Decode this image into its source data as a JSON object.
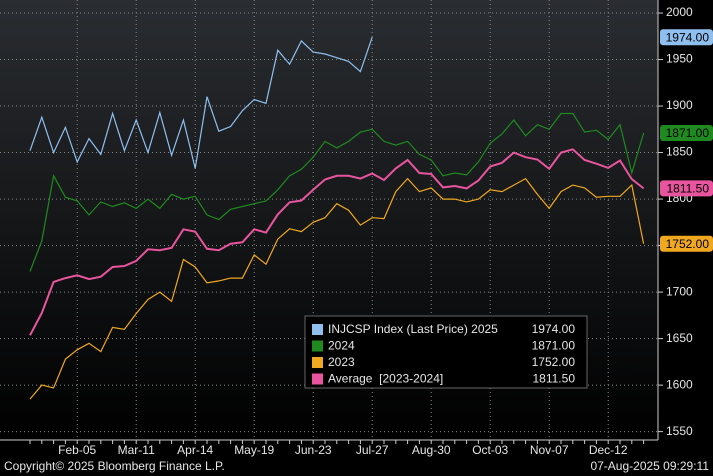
{
  "chart_data": {
    "type": "line",
    "categories": [
      null,
      null,
      null,
      null,
      "Feb-05",
      null,
      null,
      null,
      null,
      "Mar-11",
      null,
      null,
      null,
      null,
      "Apr-14",
      null,
      null,
      null,
      null,
      "May-19",
      null,
      null,
      null,
      null,
      "Jun-23",
      null,
      null,
      null,
      null,
      "Jul-27",
      null,
      null,
      null,
      null,
      "Aug-30",
      null,
      null,
      null,
      null,
      "Oct-03",
      null,
      null,
      null,
      null,
      "Nov-07",
      null,
      null,
      null,
      null,
      "Dec-12",
      null,
      null,
      null
    ],
    "series": [
      {
        "name": "INJCSP Index (Last Price) 2025",
        "color": "#8fbfef",
        "values": [
          1852,
          1888,
          1850,
          1877,
          1840,
          1865,
          1848,
          1892,
          1852,
          1885,
          1850,
          1893,
          1847,
          1885,
          1833,
          1910,
          1873,
          1878,
          1895,
          1907,
          1903,
          1960,
          1945,
          1970,
          1958,
          1956,
          1952,
          1948,
          1937,
          1974,
          null,
          null,
          null,
          null,
          null,
          null,
          null,
          null,
          null,
          null,
          null,
          null,
          null,
          null,
          null,
          null,
          null,
          null,
          null,
          null,
          null,
          null,
          null
        ],
        "value_labels": [
          null,
          null,
          null,
          null,
          null,
          null,
          null,
          null,
          null,
          null,
          null,
          null,
          null,
          null,
          null,
          null,
          null,
          null,
          null,
          null,
          null,
          null,
          null,
          null,
          null,
          null,
          null,
          null,
          null,
          "1974.00",
          null,
          null,
          null,
          null,
          null,
          null,
          null,
          null,
          null,
          null,
          null,
          null,
          null,
          null,
          null,
          null,
          null,
          null,
          null,
          null,
          null,
          null,
          null
        ]
      },
      {
        "name": "2024",
        "color": "#1f8a1f",
        "values": [
          1722,
          1755,
          1825,
          1802,
          1798,
          1783,
          1797,
          1792,
          1796,
          1790,
          1800,
          1790,
          1805,
          1800,
          1803,
          1783,
          1778,
          1789,
          1792,
          1795,
          1798,
          1810,
          1825,
          1832,
          1845,
          1862,
          1855,
          1862,
          1872,
          1875,
          1862,
          1858,
          1862,
          1848,
          1842,
          1825,
          1828,
          1826,
          1840,
          1860,
          1870,
          1885,
          1868,
          1880,
          1875,
          1892,
          1892,
          1872,
          1874,
          1864,
          1880,
          1828,
          1871
        ],
        "value_labels": [
          null,
          null,
          null,
          null,
          null,
          null,
          null,
          null,
          null,
          null,
          null,
          null,
          null,
          null,
          null,
          null,
          null,
          null,
          null,
          null,
          null,
          null,
          null,
          null,
          null,
          null,
          null,
          null,
          null,
          null,
          null,
          null,
          null,
          null,
          null,
          null,
          null,
          null,
          null,
          null,
          null,
          null,
          null,
          null,
          null,
          null,
          null,
          null,
          null,
          null,
          null,
          null,
          "1871.00"
        ]
      },
      {
        "name": "2023",
        "color": "#f0a820",
        "values": [
          1585,
          1600,
          1597,
          1628,
          1638,
          1645,
          1636,
          1662,
          1660,
          1677,
          1692,
          1700,
          1690,
          1735,
          1727,
          1710,
          1712,
          1715,
          1715,
          1740,
          1730,
          1757,
          1768,
          1765,
          1775,
          1780,
          1795,
          1788,
          1772,
          1780,
          1779,
          1808,
          1822,
          1808,
          1812,
          1800,
          1800,
          1797,
          1800,
          1810,
          1808,
          1815,
          1822,
          1805,
          1790,
          1808,
          1815,
          1812,
          1802,
          1803,
          1803,
          1815,
          1752
        ],
        "value_labels": [
          null,
          null,
          null,
          null,
          null,
          null,
          null,
          null,
          null,
          null,
          null,
          null,
          null,
          null,
          null,
          null,
          null,
          null,
          null,
          null,
          null,
          null,
          null,
          null,
          null,
          null,
          null,
          null,
          null,
          null,
          null,
          null,
          null,
          null,
          null,
          null,
          null,
          null,
          null,
          null,
          null,
          null,
          null,
          null,
          null,
          null,
          null,
          null,
          null,
          null,
          null,
          null,
          "1752.00"
        ]
      },
      {
        "name": "Average  [2023-2024]",
        "color": "#e8559e",
        "values": [
          1653.5,
          1677.5,
          1711,
          1715,
          1718,
          1714,
          1716.5,
          1727,
          1728,
          1733.5,
          1746,
          1745,
          1747.5,
          1767.5,
          1765,
          1746.5,
          1745,
          1752,
          1753.5,
          1767.5,
          1764,
          1783.5,
          1796.5,
          1798.5,
          1810,
          1821,
          1825,
          1825,
          1822,
          1827.5,
          1820.5,
          1833,
          1842,
          1828,
          1827,
          1812.5,
          1814,
          1811.5,
          1820,
          1835,
          1839,
          1850,
          1845,
          1842.5,
          1832.5,
          1850,
          1853.5,
          1842,
          1838,
          1833.5,
          1841.5,
          1821.5,
          1811.5
        ],
        "value_labels": [
          null,
          null,
          null,
          null,
          null,
          null,
          null,
          null,
          null,
          null,
          null,
          null,
          null,
          null,
          null,
          null,
          null,
          null,
          null,
          null,
          null,
          null,
          null,
          null,
          null,
          null,
          null,
          null,
          null,
          null,
          null,
          null,
          null,
          null,
          null,
          null,
          null,
          null,
          null,
          null,
          null,
          null,
          null,
          null,
          null,
          null,
          null,
          null,
          null,
          null,
          null,
          null,
          "1811.50"
        ]
      }
    ],
    "ylim": [
      1541,
      2014
    ],
    "yticks": [
      1550,
      1600,
      1650,
      1700,
      1750,
      1800,
      1850,
      1900,
      1950,
      2000
    ],
    "grid": true,
    "legend": "bottom-center",
    "footer_left": "Copyright© 2025 Bloomberg Finance L.P.",
    "footer_right": "07-Aug-2025 09:29:11"
  }
}
